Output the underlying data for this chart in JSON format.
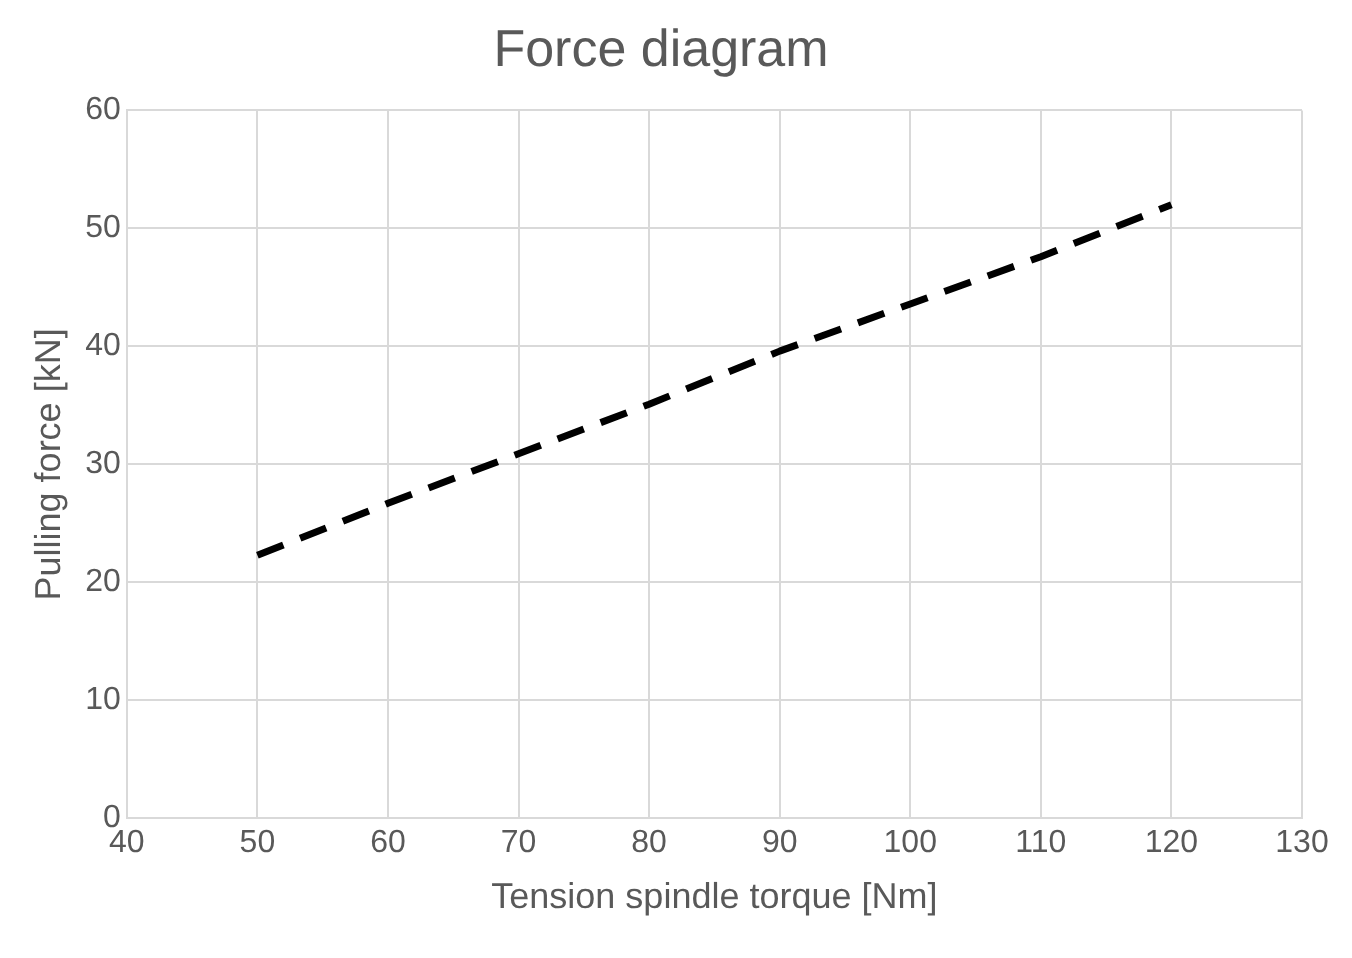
{
  "chart_data": {
    "type": "line",
    "title": "Force diagram",
    "xlabel": "Tension spindle torque [Nm]",
    "ylabel": "Pulling force [kN]",
    "x": [
      50,
      60,
      70,
      80,
      90,
      100,
      110,
      120
    ],
    "series": [
      {
        "color": "#000000",
        "values": [
          22.3,
          26.7,
          30.9,
          35.1,
          39.6,
          43.6,
          47.6,
          52.0
        ]
      }
    ],
    "xlim": [
      40,
      130
    ],
    "xticks": [
      40,
      50,
      60,
      70,
      80,
      90,
      100,
      110,
      120,
      130
    ],
    "ylim": [
      0,
      60
    ],
    "yticks": [
      0,
      10,
      20,
      30,
      40,
      50,
      60
    ],
    "grid": true,
    "legend": false,
    "marker": "none",
    "line_style": "dashed"
  }
}
